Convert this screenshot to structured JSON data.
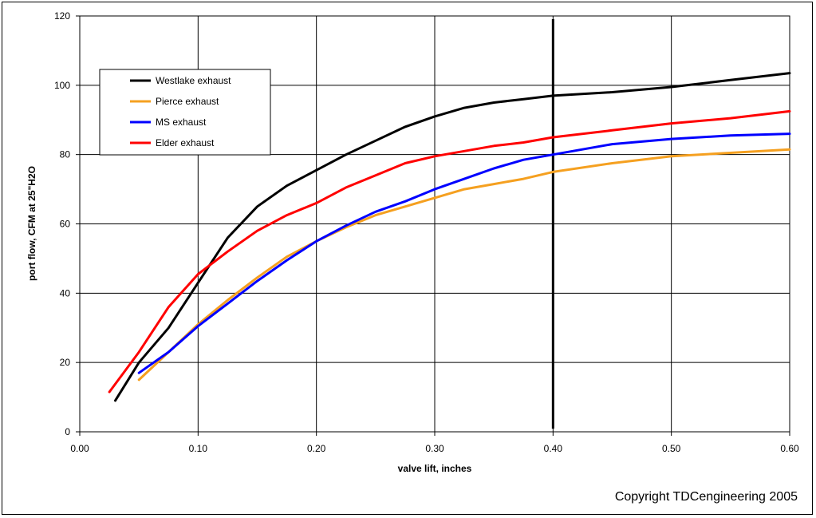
{
  "chart_data": {
    "type": "line",
    "title": "",
    "xlabel": "valve lift, inches",
    "ylabel": "port flow, CFM at 25\"H2O",
    "xlim": [
      0,
      0.6
    ],
    "ylim": [
      0,
      120
    ],
    "x_ticks": [
      "0.00",
      "0.10",
      "0.20",
      "0.30",
      "0.40",
      "0.50",
      "0.60"
    ],
    "y_ticks": [
      "0",
      "20",
      "40",
      "60",
      "80",
      "100",
      "120"
    ],
    "grid": true,
    "legend_position": "top-left",
    "reference_line_x": 0.4,
    "series": [
      {
        "name": "Westlake exhaust",
        "color": "#000000",
        "x": [
          0.03,
          0.05,
          0.075,
          0.1,
          0.125,
          0.15,
          0.175,
          0.2,
          0.225,
          0.25,
          0.275,
          0.3,
          0.325,
          0.35,
          0.375,
          0.4,
          0.45,
          0.5,
          0.55,
          0.6
        ],
        "y": [
          9,
          20,
          30,
          43,
          56,
          65,
          71,
          75.5,
          80,
          84,
          88,
          91,
          93.5,
          95,
          96,
          97,
          98,
          99.5,
          101.5,
          103.5
        ]
      },
      {
        "name": "Pierce exhaust",
        "color": "#f5a020",
        "x": [
          0.05,
          0.075,
          0.1,
          0.125,
          0.15,
          0.175,
          0.2,
          0.225,
          0.25,
          0.275,
          0.3,
          0.325,
          0.35,
          0.375,
          0.4,
          0.45,
          0.5,
          0.55,
          0.6
        ],
        "y": [
          15,
          23,
          31,
          38,
          44.5,
          50.5,
          55,
          59,
          62.5,
          65,
          67.5,
          70,
          71.5,
          73,
          75,
          77.5,
          79.5,
          80.5,
          81.5
        ]
      },
      {
        "name": "MS exhaust",
        "color": "#0000ff",
        "x": [
          0.05,
          0.075,
          0.1,
          0.125,
          0.15,
          0.175,
          0.2,
          0.225,
          0.25,
          0.275,
          0.3,
          0.325,
          0.35,
          0.375,
          0.4,
          0.45,
          0.5,
          0.55,
          0.6
        ],
        "y": [
          17,
          23,
          30.5,
          37,
          43.5,
          49.5,
          55,
          59.5,
          63.5,
          66.5,
          70,
          73,
          76,
          78.5,
          80,
          83,
          84.5,
          85.5,
          86
        ]
      },
      {
        "name": "Elder exhaust",
        "color": "#ff0000",
        "x": [
          0.025,
          0.05,
          0.075,
          0.1,
          0.125,
          0.15,
          0.175,
          0.2,
          0.225,
          0.25,
          0.275,
          0.3,
          0.325,
          0.35,
          0.375,
          0.4,
          0.45,
          0.5,
          0.55,
          0.6
        ],
        "y": [
          11.5,
          23,
          36,
          45.5,
          52,
          58,
          62.5,
          66,
          70.5,
          74,
          77.5,
          79.5,
          81,
          82.5,
          83.5,
          85,
          87,
          89,
          90.5,
          92.5
        ]
      }
    ]
  },
  "copyright": "Copyright TDCengineering 2005"
}
